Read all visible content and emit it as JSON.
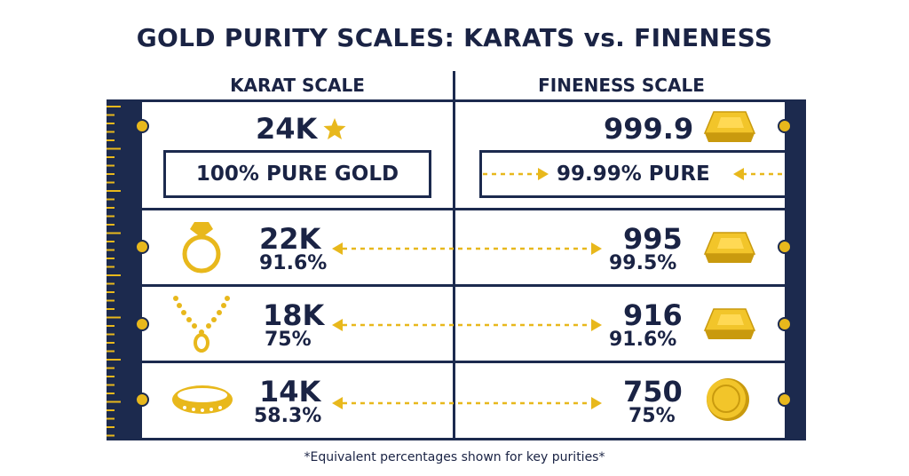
{
  "title": "GOLD PURITY SCALES: KARATS vs. FINENESS",
  "columns": {
    "left": "KARAT SCALE",
    "right": "FINENESS SCALE"
  },
  "rows": [
    {
      "karat": "24K",
      "karat_box": "100% PURE GOLD",
      "fineness": "999.9",
      "fineness_box": "99.99% PURE",
      "karat_icon": "star-icon",
      "fineness_icon": "gold-bar-icon"
    },
    {
      "karat": "22K",
      "karat_pct": "91.6%",
      "fineness": "995",
      "fineness_pct": "99.5%",
      "karat_icon": "ring-icon",
      "fineness_icon": "gold-bar-icon"
    },
    {
      "karat": "18K",
      "karat_pct": "75%",
      "fineness": "916",
      "fineness_pct": "91.6%",
      "karat_icon": "necklace-icon",
      "fineness_icon": "gold-bar-icon"
    },
    {
      "karat": "14K",
      "karat_pct": "58.3%",
      "fineness": "750",
      "fineness_pct": "75%",
      "karat_icon": "bangle-icon",
      "fineness_icon": "gold-coin-icon"
    }
  ],
  "footnote": "*Equivalent percentages shown for key purities*",
  "colors": {
    "navy": "#1c2a4e",
    "gold": "#e8b81c",
    "gold_dark": "#c99a0e"
  }
}
